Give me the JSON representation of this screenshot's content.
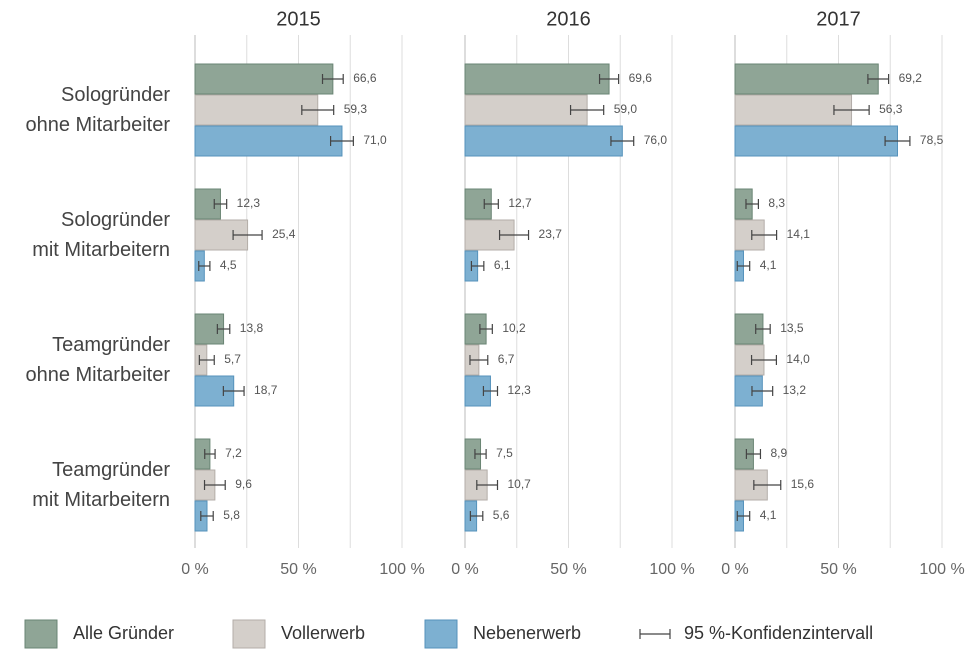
{
  "chart_data": {
    "type": "bar",
    "orientation": "horizontal",
    "categories": [
      "Sologründer\nohne Mitarbeiter",
      "Sologründer\nmit Mitarbeitern",
      "Teamgründer\nohne Mitarbeiter",
      "Teamgründer\nmit Mitarbeitern"
    ],
    "series": [
      {
        "name": "Alle Gründer",
        "color": "#8fa596",
        "border": "#6a8574"
      },
      {
        "name": "Vollerwerb",
        "color": "#d4cfca",
        "border": "#b3ada8"
      },
      {
        "name": "Nebenerwerb",
        "color": "#7db0d1",
        "border": "#5592bb"
      }
    ],
    "error_bar_label": "95 %-Konfidenzintervall",
    "xlim": [
      0,
      100
    ],
    "xticks": [
      {
        "value": 0,
        "label": "0 %"
      },
      {
        "value": 50,
        "label": "50 %"
      },
      {
        "value": 100,
        "label": "100 %"
      }
    ],
    "xgrid": [
      0,
      25,
      50,
      75,
      100
    ],
    "panels": [
      {
        "title": "2015",
        "series": [
          {
            "values": [
              66.6,
              12.3,
              13.8,
              7.2
            ],
            "value_labels": [
              "66,6",
              "12,3",
              "13,8",
              "7,2"
            ],
            "errors": [
              5,
              3,
              3,
              2.5
            ]
          },
          {
            "values": [
              59.3,
              25.4,
              5.7,
              9.6
            ],
            "value_labels": [
              "59,3",
              "25,4",
              "5,7",
              "9,6"
            ],
            "errors": [
              7.7,
              7,
              3.6,
              5
            ]
          },
          {
            "values": [
              71.0,
              4.5,
              18.7,
              5.8
            ],
            "value_labels": [
              "71,0",
              "4,5",
              "18,7",
              "5,8"
            ],
            "errors": [
              5.5,
              2.7,
              5,
              3
            ]
          }
        ]
      },
      {
        "title": "2016",
        "series": [
          {
            "values": [
              69.6,
              12.7,
              10.2,
              7.5
            ],
            "value_labels": [
              "69,6",
              "12,7",
              "10,2",
              "7,5"
            ],
            "errors": [
              4.6,
              3.4,
              3,
              2.7
            ]
          },
          {
            "values": [
              59.0,
              23.7,
              6.7,
              10.7
            ],
            "value_labels": [
              "59,0",
              "23,7",
              "6,7",
              "10,7"
            ],
            "errors": [
              8,
              7,
              4.3,
              5
            ]
          },
          {
            "values": [
              76.0,
              6.1,
              12.3,
              5.6
            ],
            "value_labels": [
              "76,0",
              "6,1",
              "12,3",
              "5,6"
            ],
            "errors": [
              5.5,
              3,
              3.4,
              3
            ]
          }
        ]
      },
      {
        "title": "2017",
        "series": [
          {
            "values": [
              69.2,
              8.3,
              13.5,
              8.9
            ],
            "value_labels": [
              "69,2",
              "8,3",
              "13,5",
              "8,9"
            ],
            "errors": [
              5,
              3,
              3.5,
              3.4
            ]
          },
          {
            "values": [
              56.3,
              14.1,
              14.0,
              15.6
            ],
            "value_labels": [
              "56,3",
              "14,1",
              "14,0",
              "15,6"
            ],
            "errors": [
              8.5,
              6,
              6,
              6.5
            ]
          },
          {
            "values": [
              78.5,
              4.1,
              13.2,
              4.1
            ],
            "value_labels": [
              "78,5",
              "4,1",
              "13,2",
              "4,1"
            ],
            "errors": [
              6,
              3,
              5,
              3
            ]
          }
        ]
      }
    ]
  }
}
